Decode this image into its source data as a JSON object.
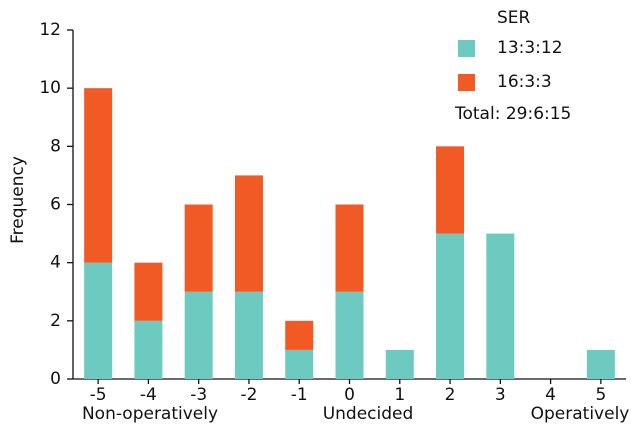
{
  "chart_data": {
    "type": "bar",
    "stacked": true,
    "y_label": "Frequency",
    "categories": [
      "-5",
      "-4",
      "-3",
      "-2",
      "-1",
      "0",
      "1",
      "2",
      "3",
      "4",
      "5"
    ],
    "series": [
      {
        "name": "13:3:12",
        "color": "#6ccac0",
        "values": [
          4,
          2,
          3,
          3,
          1,
          3,
          1,
          5,
          5,
          0,
          1
        ]
      },
      {
        "name": "16:3:3",
        "color": "#f15a24",
        "values": [
          6,
          2,
          3,
          4,
          1,
          3,
          0,
          3,
          0,
          0,
          0
        ]
      }
    ],
    "legend_title": "SER",
    "legend_note": "Total: 29:6:15",
    "annotations": [
      "Non-operatively",
      "Undecided",
      "Operatively"
    ],
    "ylim": [
      0,
      12
    ],
    "yticks": [
      0,
      2,
      4,
      6,
      8,
      10,
      12
    ],
    "grid": false
  }
}
